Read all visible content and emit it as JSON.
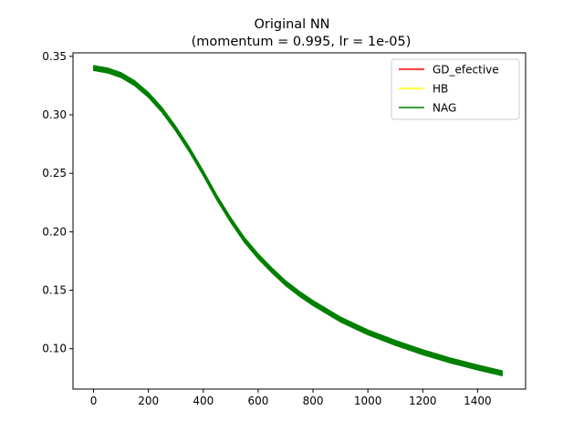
{
  "chart_data": {
    "type": "line",
    "title_line1": "Original NN",
    "title_line2": "(momentum = 0.995, lr = 1e-05)",
    "xlabel": "",
    "ylabel": "",
    "xlim": [
      -75,
      1575
    ],
    "ylim": [
      0.0655,
      0.353
    ],
    "xticks": [
      0,
      200,
      400,
      600,
      800,
      1000,
      1200,
      1400
    ],
    "xtick_labels": [
      "0",
      "200",
      "400",
      "600",
      "800",
      "1000",
      "1200",
      "1400"
    ],
    "yticks": [
      0.1,
      0.15,
      0.2,
      0.25,
      0.3,
      0.35
    ],
    "ytick_labels": [
      "0.10",
      "0.15",
      "0.20",
      "0.25",
      "0.30",
      "0.35"
    ],
    "grid": false,
    "legend_position": "top-right",
    "band_halfwidth": 0.0022,
    "series": [
      {
        "name": "GD_efective",
        "color": "#ff0000",
        "x": [
          0,
          50,
          100,
          150,
          200,
          250,
          300,
          350,
          400,
          450,
          500,
          550,
          600,
          650,
          700,
          750,
          800,
          900,
          1000,
          1100,
          1200,
          1300,
          1400,
          1490
        ],
        "y": [
          0.34,
          0.338,
          0.334,
          0.327,
          0.317,
          0.304,
          0.288,
          0.27,
          0.25,
          0.229,
          0.21,
          0.193,
          0.179,
          0.167,
          0.156,
          0.147,
          0.139,
          0.125,
          0.114,
          0.105,
          0.097,
          0.09,
          0.084,
          0.079
        ]
      },
      {
        "name": "HB",
        "color": "#ffff00",
        "x": [
          0,
          50,
          100,
          150,
          200,
          250,
          300,
          350,
          400,
          450,
          500,
          550,
          600,
          650,
          700,
          750,
          800,
          900,
          1000,
          1100,
          1200,
          1300,
          1400,
          1490
        ],
        "y": [
          0.34,
          0.338,
          0.334,
          0.327,
          0.317,
          0.304,
          0.288,
          0.27,
          0.25,
          0.229,
          0.21,
          0.193,
          0.179,
          0.167,
          0.156,
          0.147,
          0.139,
          0.125,
          0.114,
          0.105,
          0.097,
          0.09,
          0.084,
          0.079
        ]
      },
      {
        "name": "NAG",
        "color": "#008000",
        "x": [
          0,
          50,
          100,
          150,
          200,
          250,
          300,
          350,
          400,
          450,
          500,
          550,
          600,
          650,
          700,
          750,
          800,
          900,
          1000,
          1100,
          1200,
          1300,
          1400,
          1490
        ],
        "y": [
          0.34,
          0.338,
          0.334,
          0.327,
          0.317,
          0.304,
          0.288,
          0.27,
          0.25,
          0.229,
          0.21,
          0.193,
          0.179,
          0.167,
          0.156,
          0.147,
          0.139,
          0.125,
          0.114,
          0.105,
          0.097,
          0.09,
          0.084,
          0.079
        ]
      }
    ]
  }
}
